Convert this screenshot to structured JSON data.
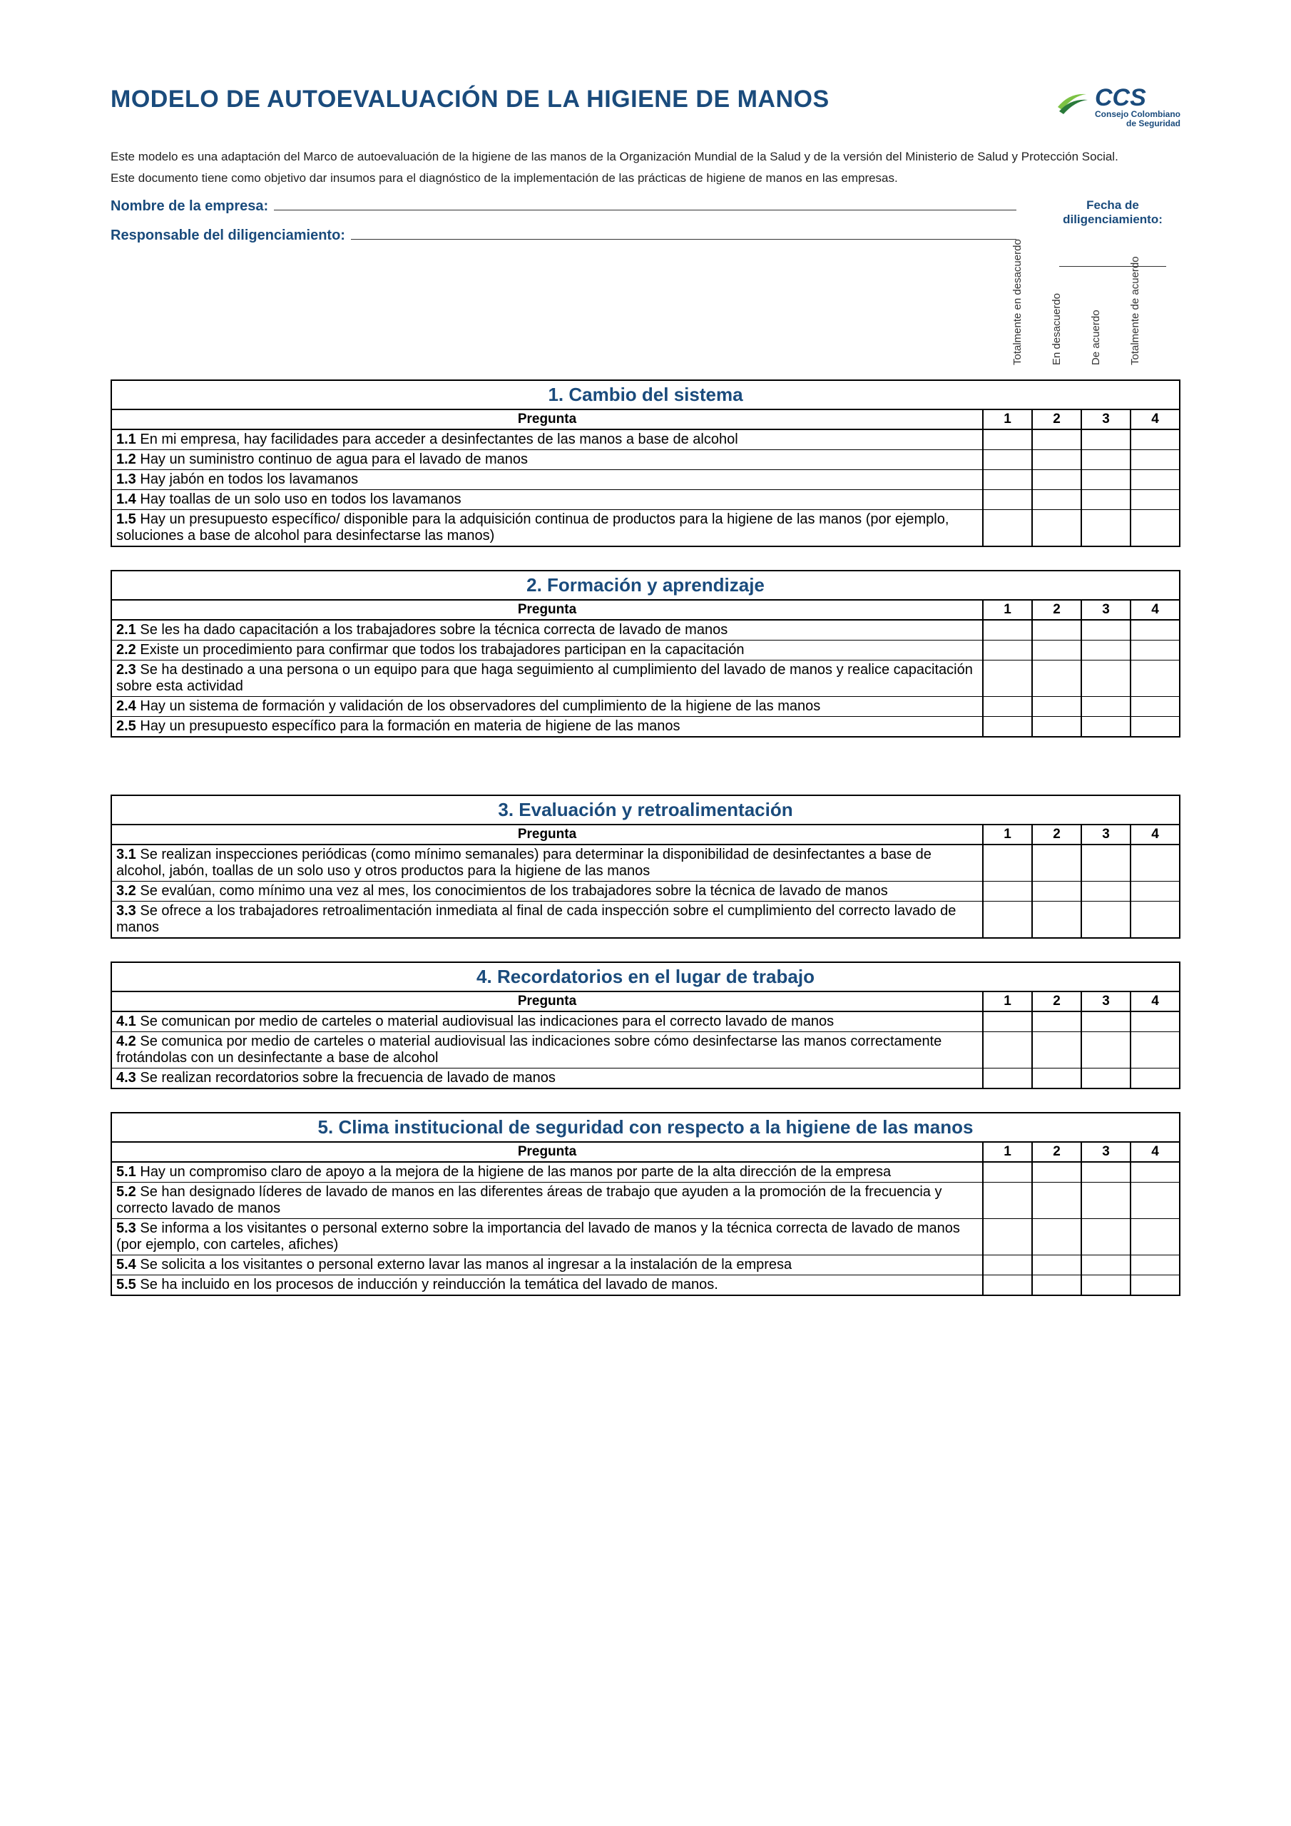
{
  "colors": {
    "brand_blue": "#1a4b7c",
    "brand_green_dark": "#2a7a3a",
    "brand_green_light": "#7cc243",
    "text": "#222222",
    "border": "#000000",
    "bg": "#ffffff"
  },
  "typography": {
    "title_fontsize": 34,
    "section_title_fontsize": 26,
    "body_fontsize": 20,
    "intro_fontsize": 17,
    "rot_label_fontsize": 15
  },
  "header": {
    "title": "MODELO DE AUTOEVALUACIÓN DE LA HIGIENE DE MANOS",
    "logo_text": "CCS",
    "logo_sub1": "Consejo Colombiano",
    "logo_sub2": "de Seguridad"
  },
  "intro": {
    "line1": "Este modelo es una adaptación del Marco de autoevaluación de la higiene de las manos de la Organización Mundial de la Salud y de la versión del Ministerio de Salud y Protección Social.",
    "line2": "Este documento tiene como objetivo dar insumos para el diagnóstico de la implementación de las prácticas de higiene de manos en las empresas."
  },
  "form": {
    "company_label": "Nombre de la empresa:",
    "responsible_label": "Responsable del diligenciamiento:",
    "date_label_1": "Fecha de",
    "date_label_2": "diligenciamiento:"
  },
  "rating_headers": {
    "r1": "Totalmente en desacuerdo",
    "r2": "En desacuerdo",
    "r3": "De acuerdo",
    "r4": "Totalmente de acuerdo"
  },
  "columns": {
    "pregunta": "Pregunta",
    "c1": "1",
    "c2": "2",
    "c3": "3",
    "c4": "4"
  },
  "sections": [
    {
      "title": "1. Cambio del sistema",
      "questions": [
        {
          "num": "1.1",
          "text": " En mi empresa, hay facilidades para acceder a desinfectantes de las manos a base de alcohol"
        },
        {
          "num": "1.2",
          "text": " Hay un suministro continuo de agua para el lavado de manos"
        },
        {
          "num": "1.3",
          "text": " Hay jabón en todos los lavamanos"
        },
        {
          "num": "1.4",
          "text": " Hay toallas de un solo uso en todos los lavamanos"
        },
        {
          "num": "1.5",
          "text": " Hay un presupuesto específico/ disponible para la adquisición continua de productos para la higiene de las manos (por ejemplo, soluciones a base de alcohol para desinfectarse las manos)"
        }
      ]
    },
    {
      "title": "2. Formación y aprendizaje",
      "questions": [
        {
          "num": "2.1",
          "text": " Se les ha dado capacitación a los trabajadores sobre la técnica correcta de lavado de manos"
        },
        {
          "num": "2.2",
          "text": " Existe un procedimiento para confirmar que todos los trabajadores participan en la capacitación"
        },
        {
          "num": "2.3",
          "text": " Se ha destinado a una persona o un equipo para que haga seguimiento al cumplimiento del lavado de manos y realice capacitación sobre esta actividad"
        },
        {
          "num": "2.4",
          "text": " Hay un sistema de formación y validación de los observadores del cumplimiento de la higiene de las manos"
        },
        {
          "num": "2.5",
          "text": " Hay un presupuesto específico para la formación en materia de higiene de las manos"
        }
      ]
    },
    {
      "title": "3. Evaluación y retroalimentación",
      "questions": [
        {
          "num": "3.1",
          "text": " Se realizan inspecciones periódicas (como mínimo semanales) para determinar la disponibilidad de desinfectantes a base de alcohol, jabón, toallas de un solo uso y otros productos para la higiene de las manos"
        },
        {
          "num": "3.2",
          "text": " Se evalúan, como mínimo una vez al mes, los conocimientos de los trabajadores sobre la técnica de lavado de manos"
        },
        {
          "num": "3.3",
          "text": " Se ofrece a los trabajadores retroalimentación inmediata al final de cada inspección sobre el cumplimiento del correcto lavado de manos"
        }
      ]
    },
    {
      "title": "4. Recordatorios en el lugar de trabajo",
      "questions": [
        {
          "num": "4.1",
          "text": " Se comunican por medio de carteles o material audiovisual las indicaciones para el correcto lavado de manos"
        },
        {
          "num": "4.2",
          "text": " Se comunica por medio de carteles o material audiovisual las indicaciones sobre cómo desinfectarse las manos correctamente frotándolas con un desinfectante a base de alcohol"
        },
        {
          "num": "4.3",
          "text": " Se realizan recordatorios sobre la frecuencia de lavado de manos"
        }
      ]
    },
    {
      "title": "5. Clima institucional de seguridad con respecto a la higiene de las manos",
      "questions": [
        {
          "num": "5.1",
          "text": " Hay un compromiso claro de apoyo a la mejora de la higiene de las manos por parte de la alta dirección de la empresa"
        },
        {
          "num": "5.2",
          "text": " Se han designado líderes de lavado de manos en las diferentes áreas de trabajo que ayuden a la promoción de la frecuencia y correcto lavado de manos"
        },
        {
          "num": "5.3",
          "text": " Se informa a los visitantes o personal externo sobre la importancia del lavado de manos y la técnica correcta de lavado de manos (por ejemplo, con carteles, afiches)"
        },
        {
          "num": "5.4",
          "text": " Se solicita a los visitantes o personal externo lavar las manos al ingresar a la instalación de la empresa"
        },
        {
          "num": "5.5",
          "text": " Se ha incluido en los procesos de inducción y reinducción la temática del lavado de manos."
        }
      ]
    }
  ]
}
